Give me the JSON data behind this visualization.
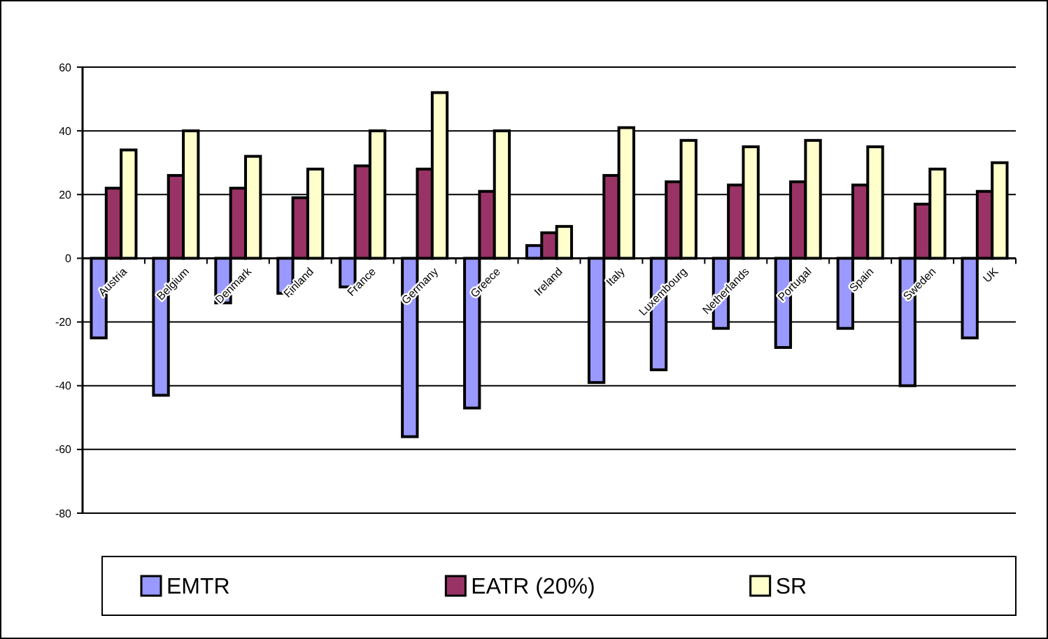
{
  "chart_data": {
    "type": "bar",
    "categories": [
      "Austria",
      "Belgium",
      "Denmark",
      "Finland",
      "France",
      "Germany",
      "Greece",
      "Ireland",
      "Italy",
      "Luxembourg",
      "Netherlands",
      "Portugal",
      "Spain",
      "Sweden",
      "UK"
    ],
    "series": [
      {
        "name": "EMTR",
        "color": "#9999ff",
        "values": [
          -25,
          -43,
          -14,
          -11,
          -9,
          -56,
          -47,
          4,
          -39,
          -35,
          -22,
          -28,
          -22,
          -40,
          -25
        ]
      },
      {
        "name": "EATR (20%)",
        "color": "#993366",
        "values": [
          22,
          26,
          22,
          19,
          29,
          28,
          21,
          8,
          26,
          24,
          23,
          24,
          23,
          17,
          21
        ]
      },
      {
        "name": "SR",
        "color": "#ffffcc",
        "values": [
          34,
          40,
          32,
          28,
          40,
          52,
          40,
          10,
          41,
          37,
          35,
          37,
          35,
          28,
          30
        ]
      }
    ],
    "ylim": [
      -80,
      60
    ],
    "yticks": [
      -80,
      -60,
      -40,
      -20,
      0,
      20,
      40,
      60
    ],
    "grid": "y",
    "legend": "bottom"
  }
}
